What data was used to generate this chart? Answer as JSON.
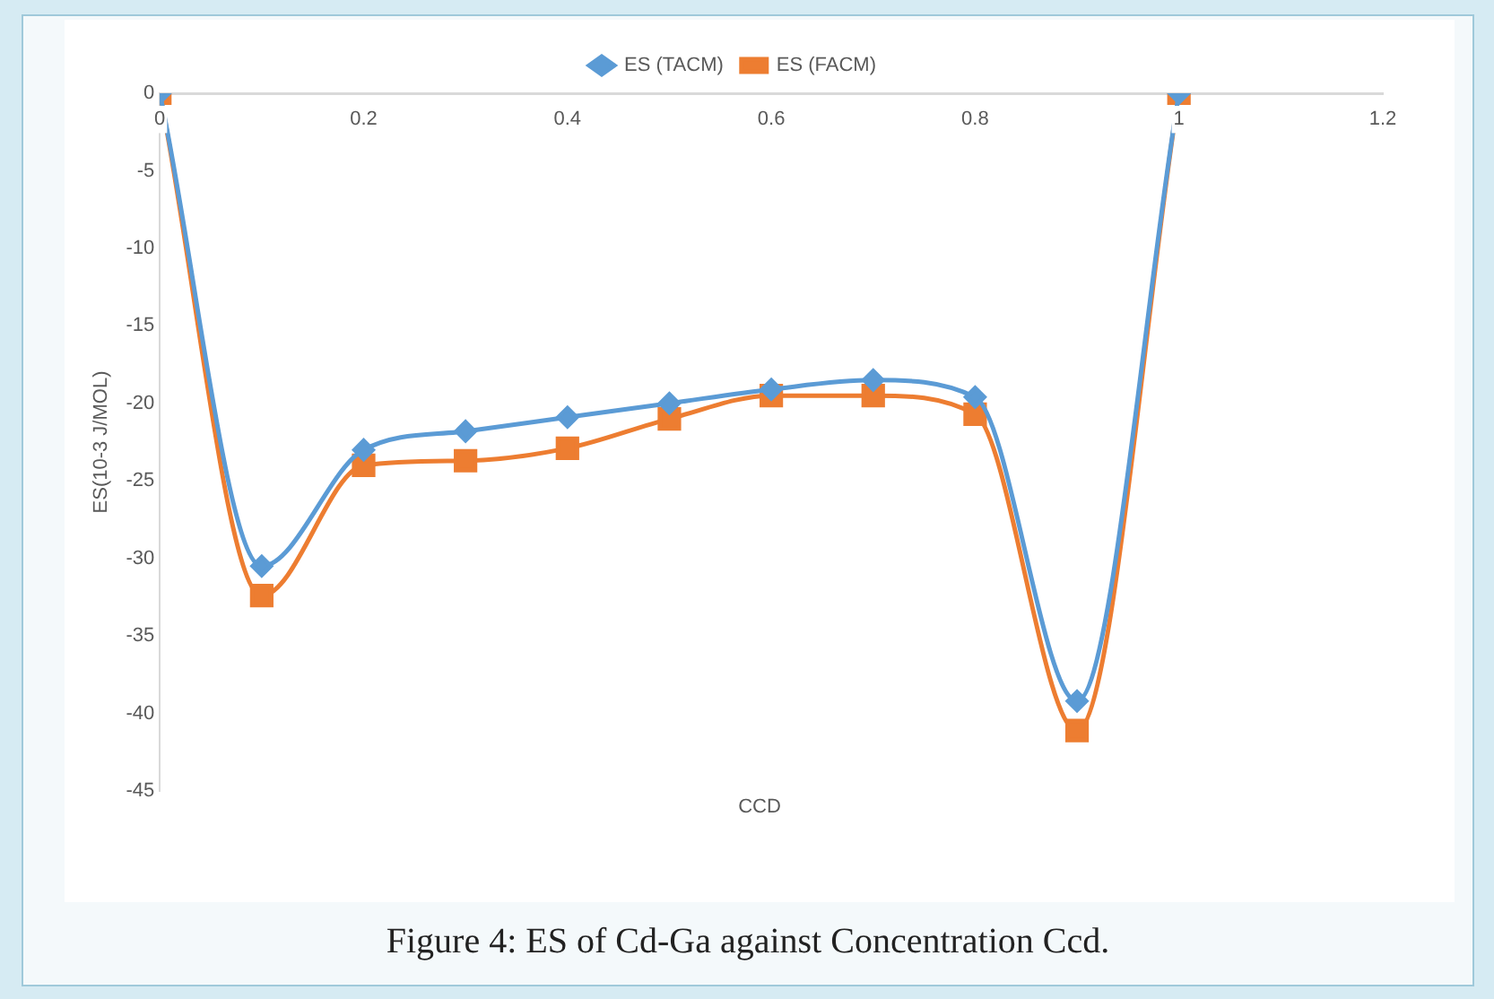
{
  "chart_data": {
    "type": "line",
    "xlabel": "CCD",
    "ylabel": "ES(10-3 J/MOL)",
    "x": [
      0,
      0.1,
      0.2,
      0.3,
      0.4,
      0.5,
      0.6,
      0.7,
      0.8,
      0.9,
      1
    ],
    "series": [
      {
        "name": "ES (TACM)",
        "color": "#5b9bd5",
        "marker": "diamond",
        "values": [
          0,
          -30.5,
          -23,
          -21.8,
          -20.9,
          -20,
          -19.1,
          -18.5,
          -19.6,
          -39.2,
          0
        ]
      },
      {
        "name": "ES (FACM)",
        "color": "#ed7d31",
        "marker": "square",
        "values": [
          0,
          -32.4,
          -24,
          -23.7,
          -22.9,
          -21,
          -19.5,
          -19.5,
          -20.7,
          -41.1,
          0
        ]
      }
    ],
    "xlim": [
      0,
      1.2
    ],
    "xticks": [
      0,
      0.2,
      0.4,
      0.6,
      0.8,
      1,
      1.2
    ],
    "ylim": [
      -45,
      0
    ],
    "yticks": [
      0,
      -5,
      -10,
      -15,
      -20,
      -25,
      -30,
      -35,
      -40,
      -45
    ],
    "grid": false,
    "legend": "top",
    "line_style": "solid",
    "annotations": [
      "Figure 4: ES of Cd-Ga against Concentration Ccd."
    ]
  }
}
